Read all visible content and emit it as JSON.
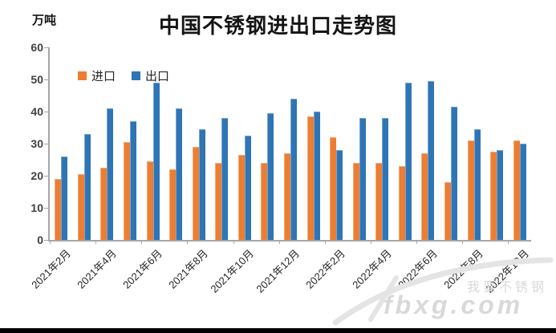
{
  "title": "中国不锈钢进出口走势图",
  "y_axis_unit": "万吨",
  "legend": {
    "import_label": "进口",
    "export_label": "出口"
  },
  "watermark": {
    "line1": "我要不锈钢",
    "line2": "fbxg.com"
  },
  "colors": {
    "import": "#ED7D31",
    "export": "#2E75B6",
    "axis": "#A6A6A6",
    "title_text": "#151515",
    "watermark": "#D9D9D9"
  },
  "chart_data": {
    "type": "bar",
    "title": "中国不锈钢进出口走势图",
    "ylabel": "万吨",
    "ylim": [
      0,
      60
    ],
    "y_ticks": [
      0,
      10,
      20,
      30,
      40,
      50,
      60
    ],
    "grid": false,
    "legend_position": "top-left-inside",
    "categories": [
      "2021年2月",
      "2021年3月",
      "2021年4月",
      "2021年5月",
      "2021年6月",
      "2021年7月",
      "2021年8月",
      "2021年9月",
      "2021年10月",
      "2021年11月",
      "2021年12月",
      "2022年1月",
      "2022年2月",
      "2022年3月",
      "2022年4月",
      "2022年5月",
      "2022年6月",
      "2022年7月",
      "2022年8月",
      "2022年9月",
      "2022年10月"
    ],
    "visible_x_labels": [
      "2021年2月",
      "2021年4月",
      "2021年6月",
      "2021年8月",
      "2021年10月",
      "2021年12月",
      "2022年2月",
      "2022年4月",
      "2022年6月",
      "2022年8月",
      "2022年10月"
    ],
    "x_label_every": 2,
    "series": [
      {
        "name": "进口",
        "color": "#ED7D31",
        "values": [
          19,
          20.5,
          22.5,
          30.5,
          24.5,
          22,
          29,
          24,
          26.5,
          24,
          27,
          38.5,
          32,
          24,
          24,
          23,
          27,
          18,
          31,
          27.5,
          31
        ]
      },
      {
        "name": "出口",
        "color": "#2E75B6",
        "values": [
          26,
          33,
          41,
          37,
          49,
          41,
          34.5,
          38,
          32.5,
          39.5,
          44,
          40,
          28,
          38,
          38,
          49,
          49.5,
          41.5,
          34.5,
          28,
          30
        ]
      }
    ]
  }
}
